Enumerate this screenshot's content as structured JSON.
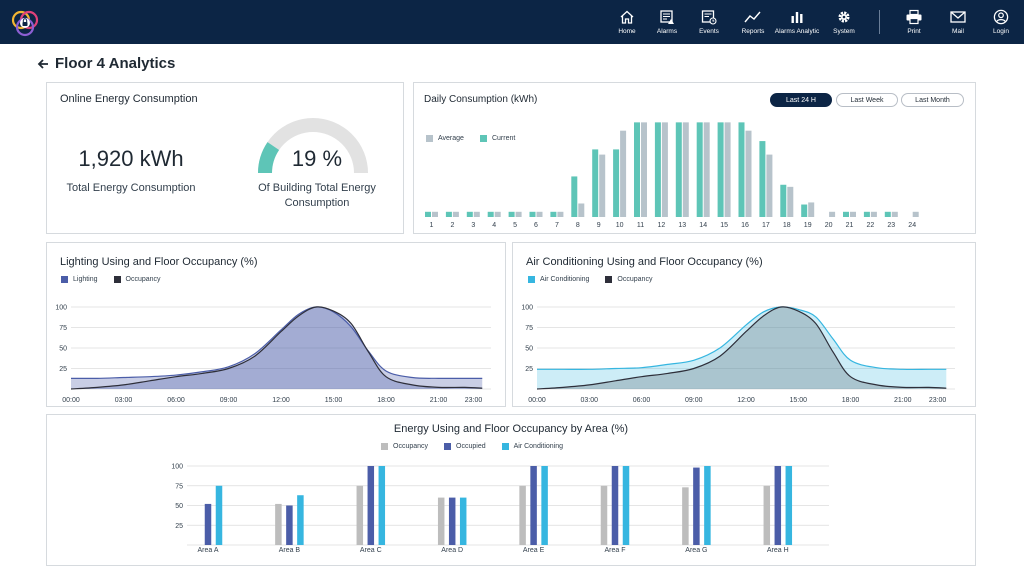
{
  "nav": {
    "items": [
      {
        "label": "Home",
        "icon": "home-icon"
      },
      {
        "label": "Alarms",
        "icon": "alarms-icon"
      },
      {
        "label": "Events",
        "icon": "events-icon"
      },
      {
        "label": "Reports",
        "icon": "reports-icon"
      },
      {
        "label": "Alarms Analytic",
        "icon": "bar-chart-icon"
      },
      {
        "label": "System",
        "icon": "gear-icon"
      },
      {
        "label": "Print",
        "icon": "printer-icon"
      },
      {
        "label": "Mail",
        "icon": "mail-icon"
      },
      {
        "label": "Login",
        "icon": "user-icon"
      }
    ]
  },
  "page": {
    "title": "Floor 4 Analytics"
  },
  "online": {
    "title": "Online Energy Consumption",
    "total_value": "1,920 kWh",
    "total_label": "Total Energy Consumption",
    "percent_value": "19 %",
    "percent": 19,
    "percent_label_line1": "Of Building Total Energy",
    "percent_label_line2": "Consumption"
  },
  "colors": {
    "nav_bg": "#0c2545",
    "teal": "#5ec5b7",
    "grey": "#b7c3cb",
    "lighting": "#4b5da8",
    "occupancy_line": "#2e2f3a",
    "ac": "#36b6e0",
    "occupancy_bar": "#bdbdbd"
  },
  "daily": {
    "title": "Daily Consumption (kWh)",
    "buttons": [
      "Last 24 H",
      "Last Week",
      "Last Month"
    ],
    "active_button": 0,
    "chart_data": {
      "type": "bar",
      "categories": [
        "1",
        "2",
        "3",
        "4",
        "5",
        "6",
        "7",
        "8",
        "9",
        "10",
        "11",
        "12",
        "13",
        "14",
        "15",
        "16",
        "17",
        "18",
        "19",
        "20",
        "21",
        "22",
        "23",
        "24"
      ],
      "series": [
        {
          "name": "Average",
          "values": [
            5,
            5,
            5,
            5,
            5,
            5,
            5,
            13,
            60,
            83,
            91,
            91,
            91,
            91,
            91,
            83,
            60,
            29,
            14,
            5,
            5,
            5,
            5,
            5
          ]
        },
        {
          "name": "Current",
          "values": [
            5,
            5,
            5,
            5,
            5,
            5,
            5,
            39,
            65,
            65,
            91,
            91,
            91,
            91,
            91,
            91,
            73,
            31,
            12,
            0,
            5,
            5,
            5,
            0
          ]
        }
      ],
      "ylim": [
        0,
        100
      ]
    }
  },
  "lighting": {
    "title": "Lighting Using and Floor Occupancy (%)",
    "chart_data": {
      "type": "area",
      "x": [
        0,
        1.5,
        3,
        4.5,
        6,
        7.5,
        9,
        10.5,
        12,
        13,
        14,
        15,
        16,
        17,
        18,
        19.5,
        21,
        22.5,
        23.5
      ],
      "xticks": [
        "00:00",
        "03:00",
        "06:00",
        "09:00",
        "12:00",
        "15:00",
        "18:00",
        "21:00",
        "23:00"
      ],
      "yticks": [
        25,
        50,
        75,
        100
      ],
      "ylim": [
        0,
        100
      ],
      "series": [
        {
          "name": "Lighting",
          "values": [
            13,
            13,
            14,
            15,
            17,
            21,
            27,
            43,
            72,
            91,
            100,
            94,
            76,
            46,
            22,
            14,
            13,
            13,
            13
          ]
        },
        {
          "name": "Occupancy",
          "values": [
            0,
            2,
            5,
            10,
            15,
            19,
            25,
            40,
            70,
            89,
            100,
            95,
            80,
            45,
            15,
            5,
            2,
            2,
            1
          ]
        }
      ]
    }
  },
  "aircon": {
    "title": "Air Conditioning Using and Floor Occupancy (%)",
    "chart_data": {
      "type": "area",
      "x": [
        0,
        1.5,
        3,
        4.5,
        6,
        7.5,
        9,
        10.5,
        12,
        13,
        14,
        15,
        16,
        17,
        18,
        19.5,
        21,
        22.5,
        23.5
      ],
      "xticks": [
        "00:00",
        "03:00",
        "06:00",
        "09:00",
        "12:00",
        "15:00",
        "18:00",
        "21:00",
        "23:00"
      ],
      "yticks": [
        25,
        50,
        75,
        100
      ],
      "ylim": [
        0,
        100
      ],
      "series": [
        {
          "name": "Air Conditioning",
          "values": [
            24,
            24,
            24,
            25,
            26,
            30,
            35,
            50,
            78,
            94,
            100,
            97,
            88,
            61,
            35,
            26,
            24,
            24,
            24
          ]
        },
        {
          "name": "Occupancy",
          "values": [
            0,
            2,
            5,
            10,
            15,
            19,
            25,
            40,
            70,
            89,
            100,
            95,
            80,
            45,
            15,
            5,
            2,
            2,
            1
          ]
        }
      ]
    }
  },
  "areas": {
    "title": "Energy Using and Floor Occupancy by Area (%)",
    "chart_data": {
      "type": "bar",
      "categories": [
        "Area A",
        "Area B",
        "Area C",
        "Area D",
        "Area E",
        "Area F",
        "Area G",
        "Area H"
      ],
      "yticks": [
        25,
        50,
        75,
        100
      ],
      "ylim": [
        0,
        100
      ],
      "series": [
        {
          "name": "Occupancy",
          "values": [
            0,
            52,
            75,
            60,
            75,
            75,
            73,
            75
          ]
        },
        {
          "name": "Occupied",
          "values": [
            52,
            50,
            100,
            60,
            100,
            100,
            98,
            100
          ]
        },
        {
          "name": "Air Conditioning",
          "values": [
            75,
            63,
            100,
            60,
            100,
            100,
            100,
            100
          ]
        }
      ]
    }
  }
}
